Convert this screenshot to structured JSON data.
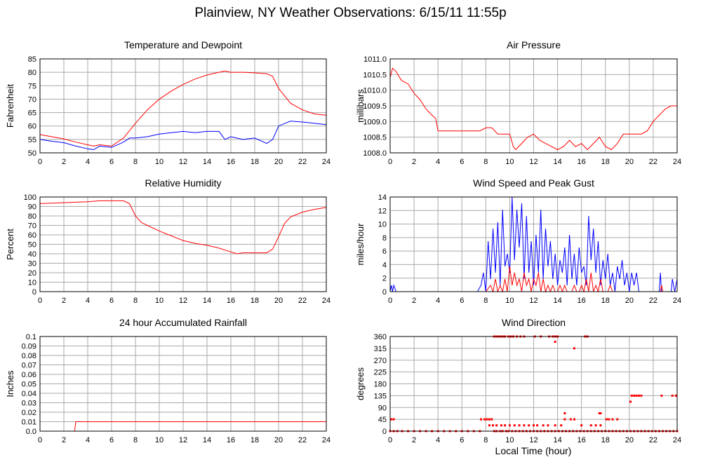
{
  "title": "Plainview, NY Weather Observations: 6/15/11 11:55p",
  "x_axis_label": "Local Time (hour)",
  "colors": {
    "red": "#ff0000",
    "blue": "#0000ff",
    "grid": "#aaaaaa",
    "frame": "#000000"
  },
  "chart_data": [
    {
      "id": "temp",
      "type": "line",
      "title": "Temperature and Dewpoint",
      "ylabel": "Fahrenheit",
      "xlim": [
        0,
        24
      ],
      "ylim": [
        50,
        85
      ],
      "xticks": [
        "0",
        "2",
        "4",
        "6",
        "8",
        "10",
        "12",
        "14",
        "16",
        "18",
        "20",
        "22",
        "24"
      ],
      "yticks": [
        "50",
        "55",
        "60",
        "65",
        "70",
        "75",
        "80",
        "85"
      ],
      "series": [
        {
          "color": "#ff0000",
          "x": [
            0,
            1,
            2,
            3,
            4,
            4.5,
            5,
            6,
            7,
            8,
            9,
            10,
            11,
            12,
            13,
            14,
            15,
            15.5,
            16,
            17,
            18,
            19,
            19.5,
            20,
            21,
            22,
            23,
            24
          ],
          "y": [
            56.8,
            56,
            55.2,
            54,
            53,
            52.5,
            53,
            52.5,
            55.5,
            61,
            66,
            70,
            73,
            75.5,
            77.5,
            79,
            80,
            80.5,
            80,
            80,
            79.8,
            79.5,
            78.5,
            74,
            68.5,
            66,
            64.5,
            64
          ]
        },
        {
          "color": "#0000ff",
          "x": [
            0,
            1,
            2,
            3,
            4,
            4.5,
            5,
            6,
            7,
            7.5,
            8,
            9,
            10,
            11,
            12,
            13,
            14,
            15,
            15.5,
            16,
            17,
            18,
            19,
            19.5,
            20,
            21,
            22,
            23,
            24
          ],
          "y": [
            55,
            54.3,
            53.8,
            52.5,
            51.5,
            51.2,
            52.5,
            52,
            54,
            55.5,
            55.5,
            56,
            57,
            57.5,
            58,
            57.5,
            58,
            58,
            55,
            56,
            55,
            55.5,
            53.5,
            55,
            60,
            61.8,
            61.5,
            61,
            60.5
          ]
        }
      ]
    },
    {
      "id": "pressure",
      "type": "line",
      "title": "Air Pressure",
      "ylabel": "millibars",
      "xlim": [
        0,
        24
      ],
      "ylim": [
        1008.0,
        1011.0
      ],
      "xticks": [
        "0",
        "2",
        "4",
        "6",
        "8",
        "10",
        "12",
        "14",
        "16",
        "18",
        "20",
        "22",
        "24"
      ],
      "yticks": [
        "1008.0",
        "1008.5",
        "1009.0",
        "1009.5",
        "1010.0",
        "1010.5",
        "1011.0"
      ],
      "series": [
        {
          "color": "#ff0000",
          "x": [
            0,
            0.2,
            0.5,
            0.8,
            1,
            1.5,
            2,
            2.5,
            3,
            3.5,
            3.8,
            4,
            5,
            6,
            7,
            7.5,
            8,
            8.5,
            9,
            9.5,
            10,
            10.3,
            10.5,
            11,
            11.5,
            12,
            12.5,
            13,
            13.5,
            14,
            14.5,
            15,
            15.5,
            16,
            16.5,
            17,
            17.5,
            18,
            18.5,
            19,
            19.5,
            20,
            20.5,
            21,
            21.5,
            22,
            22.5,
            23,
            23.5,
            24
          ],
          "y": [
            1010.4,
            1010.7,
            1010.6,
            1010.4,
            1010.3,
            1010.2,
            1009.9,
            1009.7,
            1009.4,
            1009.2,
            1009.1,
            1008.7,
            1008.7,
            1008.7,
            1008.7,
            1008.7,
            1008.8,
            1008.8,
            1008.6,
            1008.6,
            1008.6,
            1008.2,
            1008.1,
            1008.3,
            1008.5,
            1008.6,
            1008.4,
            1008.3,
            1008.2,
            1008.1,
            1008.2,
            1008.4,
            1008.2,
            1008.3,
            1008.1,
            1008.3,
            1008.5,
            1008.2,
            1008.1,
            1008.3,
            1008.6,
            1008.6,
            1008.6,
            1008.6,
            1008.7,
            1009.0,
            1009.2,
            1009.4,
            1009.5,
            1009.5
          ]
        }
      ]
    },
    {
      "id": "humidity",
      "type": "line",
      "title": "Relative Humidity",
      "ylabel": "Percent",
      "xlim": [
        0,
        24
      ],
      "ylim": [
        0,
        100
      ],
      "xticks": [
        "0",
        "2",
        "4",
        "6",
        "8",
        "10",
        "12",
        "14",
        "16",
        "18",
        "20",
        "22",
        "24"
      ],
      "yticks": [
        "0",
        "10",
        "20",
        "30",
        "40",
        "50",
        "60",
        "70",
        "80",
        "90",
        "100"
      ],
      "series": [
        {
          "color": "#ff0000",
          "x": [
            0,
            1,
            2,
            3,
            4,
            5,
            6,
            7,
            7.5,
            8,
            8.5,
            9,
            10,
            11,
            12,
            13,
            14,
            15,
            16,
            16.5,
            17,
            18,
            19,
            19.5,
            20,
            20.5,
            21,
            22,
            23,
            24
          ],
          "y": [
            93,
            93.5,
            94,
            94.5,
            95,
            96,
            96,
            96,
            93,
            80,
            73,
            70,
            64,
            59,
            54,
            51,
            49,
            46,
            42,
            40,
            41,
            41,
            41,
            45,
            58,
            72,
            79,
            84,
            87,
            89
          ]
        }
      ]
    },
    {
      "id": "wind",
      "type": "line",
      "title": "Wind Speed and Peak Gust",
      "ylabel": "miles/hour",
      "xlim": [
        0,
        24
      ],
      "ylim": [
        0,
        15
      ],
      "xticks": [
        "0",
        "2",
        "4",
        "6",
        "8",
        "10",
        "12",
        "14",
        "16",
        "18",
        "20",
        "22",
        "24"
      ],
      "yticks": [
        "0",
        "2",
        "4",
        "6",
        "8",
        "10",
        "12",
        "14"
      ],
      "series": [
        {
          "color": "#0000ff",
          "x": [
            0,
            0.1,
            0.2,
            0.3,
            0.5,
            0.6,
            7.3,
            7.6,
            7.8,
            8,
            8.2,
            8.4,
            8.6,
            8.8,
            9,
            9.2,
            9.4,
            9.6,
            9.8,
            10,
            10.2,
            10.4,
            10.6,
            10.8,
            11,
            11.2,
            11.4,
            11.6,
            11.8,
            12,
            12.2,
            12.4,
            12.6,
            12.8,
            13,
            13.2,
            13.4,
            13.6,
            13.8,
            14,
            14.2,
            14.4,
            14.6,
            14.8,
            15,
            15.2,
            15.4,
            15.6,
            15.8,
            16,
            16.2,
            16.4,
            16.6,
            16.8,
            17,
            17.2,
            17.4,
            17.6,
            17.8,
            18,
            18.2,
            18.4,
            18.6,
            18.8,
            19,
            19.2,
            19.4,
            19.6,
            19.8,
            20,
            20.2,
            20.4,
            20.6,
            20.8,
            21,
            22.5,
            22.6,
            22.7,
            22.8,
            23.5,
            23.6,
            23.8,
            24
          ],
          "y": [
            0,
            1,
            0,
            1,
            0,
            0,
            0,
            1,
            3,
            0,
            8,
            2,
            10,
            3,
            11,
            1,
            13,
            4,
            6,
            3,
            15,
            5,
            13,
            7,
            14,
            2,
            12,
            3,
            8,
            1,
            9,
            3,
            13,
            2,
            10,
            4,
            8,
            2,
            6,
            1,
            5,
            3,
            7,
            1,
            9,
            2,
            6,
            1,
            7,
            3,
            4,
            1,
            12,
            5,
            10,
            3,
            8,
            1,
            5,
            2,
            6,
            1,
            3,
            0,
            4,
            2,
            5,
            1,
            3,
            0,
            3,
            1,
            3,
            0,
            0,
            0,
            3,
            0,
            0,
            0,
            2,
            0,
            2
          ]
        },
        {
          "color": "#ff0000",
          "x": [
            0,
            7.8,
            8,
            8.4,
            8.6,
            8.8,
            9,
            9.2,
            9.4,
            9.6,
            9.8,
            10,
            10.2,
            10.4,
            10.6,
            10.8,
            11,
            11.2,
            11.4,
            11.6,
            11.8,
            12,
            12.2,
            12.4,
            12.6,
            12.8,
            13,
            13.2,
            13.4,
            13.6,
            13.8,
            14,
            14.2,
            14.4,
            14.6,
            14.8,
            15,
            15.2,
            15.4,
            15.6,
            15.8,
            16,
            16.2,
            16.4,
            16.6,
            16.8,
            17,
            17.2,
            17.4,
            17.6,
            17.8,
            18,
            18.2,
            18.4,
            18.6,
            18.8,
            19,
            22.6,
            22.7,
            22.8,
            24
          ],
          "y": [
            0,
            0,
            0,
            1,
            0,
            2,
            0,
            1,
            0,
            2,
            0,
            4,
            1,
            3,
            1,
            2,
            0,
            3,
            1,
            2,
            0,
            2,
            1,
            3,
            0,
            2,
            0,
            1,
            0,
            1,
            0,
            0,
            1,
            0,
            1,
            0,
            0,
            0,
            1,
            0,
            0,
            1,
            0,
            2,
            0,
            3,
            0,
            1,
            0,
            2,
            0,
            0,
            0,
            1,
            0,
            0,
            0,
            0,
            1,
            0,
            0
          ]
        }
      ]
    },
    {
      "id": "rain",
      "type": "line",
      "title": "24 hour Accumulated Rainfall",
      "ylabel": "Inches",
      "xlim": [
        0,
        24
      ],
      "ylim": [
        0,
        0.1
      ],
      "xticks": [
        "0",
        "2",
        "4",
        "6",
        "8",
        "10",
        "12",
        "14",
        "16",
        "18",
        "20",
        "22",
        "24"
      ],
      "yticks": [
        "0.0",
        "0.01",
        "0.02",
        "0.03",
        "0.04",
        "0.05",
        "0.06",
        "0.07",
        "0.08",
        "0.09",
        "0.1"
      ],
      "series": [
        {
          "color": "#ff0000",
          "x": [
            0,
            2.9,
            3.0,
            24
          ],
          "y": [
            0,
            0,
            0.01,
            0.01
          ]
        }
      ]
    },
    {
      "id": "direction",
      "type": "scatter",
      "title": "Wind Direction",
      "ylabel": "degrees",
      "xlim": [
        0,
        24
      ],
      "ylim": [
        0,
        360
      ],
      "xticks": [
        "0",
        "2",
        "4",
        "6",
        "8",
        "10",
        "12",
        "14",
        "16",
        "18",
        "20",
        "22",
        "24"
      ],
      "yticks": [
        "0",
        "45",
        "90",
        "135",
        "180",
        "225",
        "270",
        "315",
        "360"
      ],
      "series": [
        {
          "color": "#ff0000",
          "x": [
            0,
            0.3,
            0.6,
            1,
            1.5,
            2,
            2.5,
            3,
            3.5,
            4,
            4.5,
            5,
            5.5,
            6,
            6.5,
            7,
            7.5,
            0.1,
            0.3,
            7.6,
            7.9,
            8.1,
            8.3,
            8.5,
            8.7,
            8.9,
            9.2,
            9.4,
            9.7,
            9.9,
            10.2,
            10.5,
            10.8,
            11.1,
            11.4,
            11.7,
            12,
            12.3,
            12.6,
            12.9,
            13.2,
            13.5,
            13.8,
            14.1,
            14.4,
            14.7,
            15,
            15.3,
            15.6,
            15.9,
            16.2,
            16.5,
            16.8,
            17.1,
            17.4,
            17.7,
            18,
            18.3,
            18.6,
            18.9,
            19.2,
            19.5,
            19.8,
            20.1,
            20.4,
            20.7,
            21,
            21.3,
            21.6,
            21.9,
            22.2,
            22.5,
            22.8,
            23.1,
            23.4,
            23.7,
            24,
            8.7,
            8.9,
            9.1,
            9.3,
            9.5,
            9.6,
            9.9,
            10.1,
            10.3,
            10.6,
            10.9,
            11.2,
            12.1,
            12.6,
            13.3,
            13.6,
            13.8,
            14,
            16.3,
            16.5,
            8.3,
            8.6,
            8.9,
            9.3,
            9.6,
            10,
            10.4,
            10.8,
            11.2,
            11.6,
            12,
            12.3,
            12.8,
            13.2,
            13.8,
            14.3,
            14.6,
            15.1,
            15.4,
            16,
            16.8,
            17.2,
            17.6,
            18.1,
            18.3,
            18.6,
            19,
            20.2,
            20.4,
            20.6,
            20.8,
            21,
            22.7,
            23.6,
            23.9,
            15.4,
            13.8,
            14.6,
            17.5,
            17.6,
            20.1
          ],
          "y": [
            0,
            0,
            0,
            0,
            0,
            0,
            0,
            0,
            0,
            0,
            0,
            0,
            0,
            0,
            0,
            0,
            0,
            45,
            45,
            45,
            45,
            45,
            45,
            45,
            0,
            0,
            0,
            0,
            0,
            0,
            0,
            0,
            0,
            0,
            0,
            0,
            0,
            0,
            0,
            0,
            0,
            0,
            0,
            0,
            0,
            0,
            0,
            0,
            0,
            0,
            0,
            0,
            0,
            0,
            0,
            0,
            0,
            0,
            0,
            0,
            0,
            0,
            0,
            0,
            0,
            0,
            0,
            0,
            0,
            0,
            0,
            0,
            0,
            0,
            0,
            0,
            0,
            360,
            360,
            360,
            360,
            360,
            360,
            360,
            360,
            360,
            360,
            360,
            360,
            360,
            360,
            360,
            360,
            360,
            360,
            360,
            360,
            22,
            22,
            22,
            22,
            22,
            22,
            22,
            22,
            22,
            22,
            22,
            22,
            22,
            22,
            22,
            22,
            45,
            45,
            45,
            22,
            22,
            22,
            22,
            45,
            45,
            45,
            45,
            135,
            135,
            135,
            135,
            135,
            135,
            135,
            135,
            315,
            340,
            68,
            68,
            68,
            112
          ]
        }
      ]
    }
  ]
}
